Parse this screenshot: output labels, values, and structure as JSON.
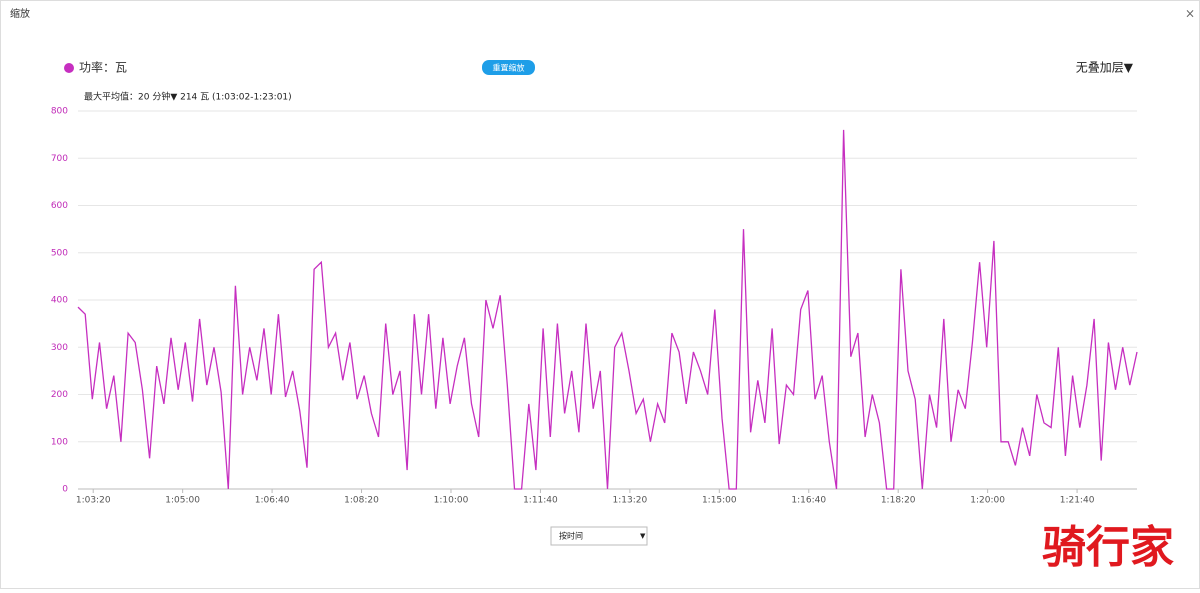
{
  "dialog": {
    "title": "缩放",
    "close": "×"
  },
  "controls": {
    "reset": "重置缩放",
    "overlay": "无叠加层▼",
    "mode": "按时间"
  },
  "watermark": "骑行家",
  "chart_data": {
    "type": "line",
    "subtitle": "最大平均值：20 分钟▼ 214 瓦 (1:03:02-1:23:01)",
    "x": [
      3783,
      3791,
      3799,
      3807,
      3815,
      3823,
      3831,
      3839,
      3847,
      3855,
      3863,
      3871,
      3879,
      3887,
      3895,
      3903,
      3911,
      3919,
      3927,
      3935,
      3943,
      3951,
      3959,
      3967,
      3975,
      3983,
      3991,
      3999,
      4007,
      4015,
      4023,
      4031,
      4039,
      4047,
      4055,
      4063,
      4071,
      4079,
      4087,
      4095,
      4103,
      4111,
      4119,
      4127,
      4135,
      4143,
      4151,
      4159,
      4167,
      4175,
      4183,
      4191,
      4199,
      4207,
      4215,
      4223,
      4231,
      4239,
      4247,
      4255,
      4263,
      4271,
      4279,
      4287,
      4295,
      4303,
      4311,
      4319,
      4327,
      4335,
      4343,
      4351,
      4359,
      4367,
      4375,
      4383,
      4391,
      4399,
      4407,
      4415,
      4423,
      4431,
      4439,
      4447,
      4455,
      4463,
      4471,
      4479,
      4487,
      4495,
      4503,
      4511,
      4519,
      4527,
      4535,
      4543,
      4551,
      4559,
      4567,
      4575,
      4583,
      4591,
      4599,
      4607,
      4615,
      4623,
      4631,
      4639,
      4647,
      4655,
      4663,
      4671,
      4679,
      4687,
      4695,
      4703,
      4711,
      4719,
      4727,
      4735,
      4743,
      4751,
      4759,
      4767,
      4775,
      4783,
      4791,
      4799,
      4807,
      4815,
      4823,
      4831,
      4839,
      4847,
      4855,
      4863,
      4871,
      4879,
      4887,
      4895,
      4903,
      4911,
      4919,
      4927,
      4935,
      4943,
      4951,
      4959,
      4967
    ],
    "series": [
      {
        "name": "功率：瓦",
        "color": "#c62fc0",
        "values": [
          385,
          370,
          190,
          310,
          170,
          240,
          100,
          330,
          310,
          210,
          65,
          260,
          180,
          320,
          210,
          310,
          185,
          360,
          220,
          300,
          205,
          0,
          430,
          200,
          300,
          230,
          340,
          200,
          370,
          195,
          250,
          165,
          45,
          465,
          480,
          300,
          330,
          230,
          310,
          190,
          240,
          160,
          110,
          350,
          200,
          250,
          40,
          370,
          200,
          370,
          170,
          320,
          180,
          260,
          320,
          180,
          110,
          400,
          340,
          410,
          220,
          0,
          0,
          180,
          40,
          340,
          110,
          350,
          160,
          250,
          120,
          350,
          170,
          250,
          0,
          300,
          330,
          250,
          160,
          190,
          100,
          180,
          140,
          330,
          290,
          180,
          290,
          250,
          200,
          380,
          150,
          0,
          0,
          550,
          120,
          230,
          140,
          340,
          95,
          220,
          200,
          380,
          420,
          190,
          240,
          100,
          0,
          760,
          280,
          330,
          110,
          200,
          140,
          0,
          0,
          465,
          250,
          190,
          0,
          200,
          130,
          360,
          100,
          210,
          170,
          310,
          480,
          300,
          525,
          100,
          100,
          50,
          130,
          70,
          200,
          140,
          130,
          300,
          70,
          240,
          130,
          220,
          360,
          60,
          310,
          210,
          300,
          220,
          290
        ]
      }
    ],
    "xlim": [
      3783,
      4967
    ],
    "xticks": [
      {
        "value": 3800,
        "label": "1:03:20"
      },
      {
        "value": 3900,
        "label": "1:05:00"
      },
      {
        "value": 4000,
        "label": "1:06:40"
      },
      {
        "value": 4100,
        "label": "1:08:20"
      },
      {
        "value": 4200,
        "label": "1:10:00"
      },
      {
        "value": 4300,
        "label": "1:11:40"
      },
      {
        "value": 4400,
        "label": "1:13:20"
      },
      {
        "value": 4500,
        "label": "1:15:00"
      },
      {
        "value": 4600,
        "label": "1:16:40"
      },
      {
        "value": 4700,
        "label": "1:18:20"
      },
      {
        "value": 4800,
        "label": "1:20:00"
      },
      {
        "value": 4900,
        "label": "1:21:40"
      }
    ],
    "ylim": [
      0,
      800
    ],
    "yticks": [
      0,
      100,
      200,
      300,
      400,
      500,
      600,
      700,
      800
    ],
    "grid": true
  }
}
